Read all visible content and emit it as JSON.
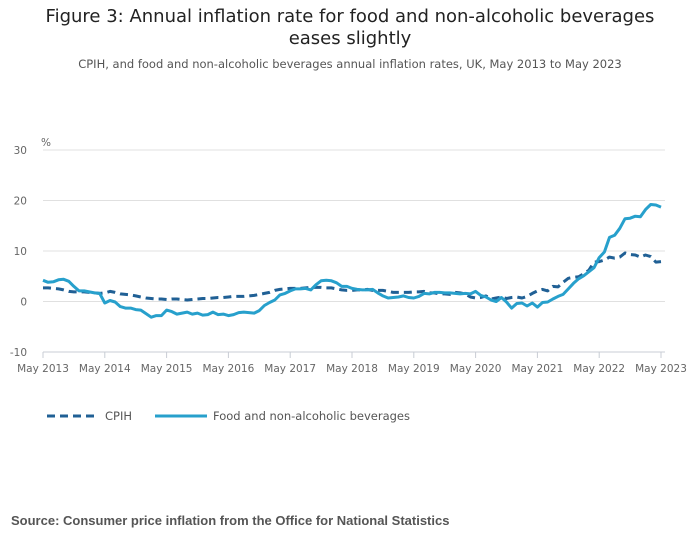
{
  "chart_data": {
    "type": "line",
    "title": "Figure 3: Annual inflation rate for food and non-alcoholic beverages eases slightly",
    "subtitle": "CPIH, and food and non-alcoholic beverages annual inflation rates, UK, May 2013 to May 2023",
    "ylabel": "%",
    "xlabel": "",
    "ylim": [
      -10,
      30
    ],
    "yticks": [
      "30",
      "20",
      "10",
      "0",
      "-10"
    ],
    "ytick_values": [
      30,
      20,
      10,
      0,
      -10
    ],
    "xticks": [
      "May 2013",
      "May 2014",
      "May 2015",
      "May 2016",
      "May 2017",
      "May 2018",
      "May 2019",
      "May 2020",
      "May 2021",
      "May 2022",
      "May 2023"
    ],
    "x_start": "May 2013",
    "x_frequency": "monthly",
    "grid": true,
    "legend_position": "bottom-left",
    "series": [
      {
        "name": "CPIH",
        "style": "dashed",
        "color": "#206095",
        "values": [
          2.7,
          2.7,
          2.6,
          2.5,
          2.3,
          2.0,
          1.9,
          1.9,
          1.9,
          1.8,
          1.7,
          1.6,
          1.7,
          2.0,
          1.8,
          1.5,
          1.4,
          1.3,
          1.1,
          0.9,
          0.7,
          0.6,
          0.5,
          0.5,
          0.4,
          0.5,
          0.5,
          0.4,
          0.3,
          0.4,
          0.5,
          0.6,
          0.6,
          0.7,
          0.8,
          0.8,
          0.9,
          1.0,
          1.0,
          1.0,
          1.1,
          1.2,
          1.4,
          1.6,
          1.8,
          2.2,
          2.4,
          2.5,
          2.6,
          2.6,
          2.6,
          2.7,
          2.8,
          2.8,
          2.8,
          2.7,
          2.7,
          2.5,
          2.3,
          2.2,
          2.2,
          2.3,
          2.3,
          2.4,
          2.2,
          2.2,
          2.2,
          2.0,
          1.8,
          1.8,
          1.8,
          1.8,
          1.9,
          1.9,
          2.0,
          1.7,
          1.7,
          1.5,
          1.5,
          1.4,
          1.8,
          1.7,
          1.5,
          0.9,
          0.7,
          0.8,
          1.1,
          0.5,
          0.7,
          0.9,
          0.6,
          0.8,
          0.9,
          0.7,
          1.0,
          1.6,
          2.1,
          2.4,
          2.1,
          3.0,
          2.9,
          3.8,
          4.6,
          4.8,
          4.9,
          5.5,
          6.2,
          7.8,
          7.9,
          8.2,
          8.8,
          8.6,
          8.8,
          9.6,
          9.3,
          9.2,
          8.8,
          9.2,
          8.9,
          7.8,
          7.9
        ]
      },
      {
        "name": "Food and non-alcoholic beverages",
        "style": "solid",
        "color": "#27a0cc",
        "values": [
          4.2,
          3.8,
          3.9,
          4.3,
          4.4,
          4.0,
          3.0,
          2.1,
          2.1,
          1.9,
          1.7,
          1.6,
          -0.3,
          0.2,
          -0.1,
          -1.0,
          -1.3,
          -1.3,
          -1.6,
          -1.7,
          -2.4,
          -3.1,
          -2.8,
          -2.8,
          -1.7,
          -2.0,
          -2.5,
          -2.3,
          -2.1,
          -2.5,
          -2.3,
          -2.7,
          -2.6,
          -2.1,
          -2.6,
          -2.5,
          -2.8,
          -2.6,
          -2.2,
          -2.1,
          -2.2,
          -2.3,
          -1.8,
          -0.8,
          -0.2,
          0.3,
          1.3,
          1.6,
          2.1,
          2.5,
          2.5,
          2.6,
          2.3,
          3.3,
          4.1,
          4.2,
          4.1,
          3.7,
          3.0,
          3.0,
          2.6,
          2.4,
          2.3,
          2.3,
          2.4,
          1.7,
          1.1,
          0.7,
          0.8,
          0.9,
          1.1,
          0.8,
          0.7,
          1.0,
          1.6,
          1.5,
          1.8,
          1.8,
          1.7,
          1.7,
          1.6,
          1.5,
          1.6,
          1.5,
          2.0,
          1.2,
          0.9,
          0.3,
          0.0,
          0.8,
          -0.1,
          -1.3,
          -0.4,
          -0.3,
          -0.9,
          -0.3,
          -1.1,
          -0.2,
          -0.1,
          0.5,
          1.0,
          1.4,
          2.5,
          3.6,
          4.5,
          5.1,
          5.9,
          6.7,
          8.7,
          9.8,
          12.7,
          13.1,
          14.5,
          16.4,
          16.5,
          16.9,
          16.8,
          18.2,
          19.2,
          19.1,
          18.7
        ]
      }
    ]
  },
  "source": "Source: Consumer price inflation from the Office for National Statistics"
}
